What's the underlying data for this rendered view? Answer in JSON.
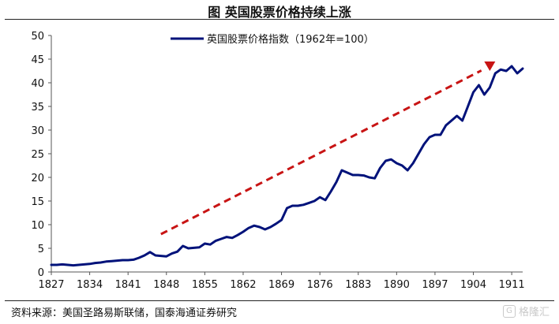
{
  "figure_title": "图  英国股票价格持续上涨",
  "source": "资料来源：美国圣路易斯联储，国泰海通证券研究",
  "watermark": "格隆汇",
  "colors": {
    "series": "#00127a",
    "trend": "#c81414",
    "axis": "#555555"
  },
  "chart_data": {
    "type": "line",
    "title": "",
    "xlabel": "",
    "ylabel": "",
    "ylim": [
      0,
      50
    ],
    "xlim": [
      1827,
      1913
    ],
    "y_ticks": [
      0,
      5,
      10,
      15,
      20,
      25,
      30,
      35,
      40,
      45,
      50
    ],
    "x_ticks": [
      "1827",
      "1834",
      "1841",
      "1848",
      "1855",
      "1862",
      "1869",
      "1876",
      "1883",
      "1890",
      "1897",
      "1904",
      "1911"
    ],
    "legend": {
      "position": "top-center",
      "entries": [
        "英国股票价格指数（1962年=100）"
      ]
    },
    "grid": false,
    "series": [
      {
        "name": "英国股票价格指数（1962年=100）",
        "x": [
          1827,
          1828,
          1829,
          1830,
          1831,
          1832,
          1833,
          1834,
          1835,
          1836,
          1837,
          1838,
          1839,
          1840,
          1841,
          1842,
          1843,
          1844,
          1845,
          1846,
          1847,
          1848,
          1849,
          1850,
          1851,
          1852,
          1853,
          1854,
          1855,
          1856,
          1857,
          1858,
          1859,
          1860,
          1861,
          1862,
          1863,
          1864,
          1865,
          1866,
          1867,
          1868,
          1869,
          1870,
          1871,
          1872,
          1873,
          1874,
          1875,
          1876,
          1877,
          1878,
          1879,
          1880,
          1881,
          1882,
          1883,
          1884,
          1885,
          1886,
          1887,
          1888,
          1889,
          1890,
          1891,
          1892,
          1893,
          1894,
          1895,
          1896,
          1897,
          1898,
          1899,
          1900,
          1901,
          1902,
          1903,
          1904,
          1905,
          1906,
          1907,
          1908,
          1909,
          1910,
          1911,
          1912,
          1913
        ],
        "y": [
          1.5,
          1.5,
          1.6,
          1.5,
          1.4,
          1.5,
          1.6,
          1.7,
          1.9,
          2.0,
          2.2,
          2.3,
          2.4,
          2.5,
          2.5,
          2.6,
          3.0,
          3.5,
          4.2,
          3.5,
          3.4,
          3.3,
          3.9,
          4.3,
          5.5,
          5.0,
          5.1,
          5.2,
          6.0,
          5.8,
          6.6,
          7.0,
          7.4,
          7.2,
          7.8,
          8.5,
          9.3,
          9.8,
          9.5,
          9.0,
          9.5,
          10.2,
          11.0,
          13.5,
          14.0,
          14.0,
          14.2,
          14.6,
          15.0,
          15.8,
          15.2,
          17.0,
          19.0,
          21.5,
          21.0,
          20.5,
          20.5,
          20.4,
          20.0,
          19.8,
          22.0,
          23.5,
          23.8,
          23.0,
          22.5,
          21.5,
          23.0,
          25.0,
          27.0,
          28.5,
          29.0,
          29.0,
          31.0,
          32.0,
          33.0,
          32.0,
          35.0,
          38.0,
          39.5,
          37.5,
          39.0,
          42.0,
          42.8,
          42.5,
          43.5,
          42.0,
          43.0
        ]
      }
    ],
    "annotations": [
      {
        "type": "trend-arrow",
        "from": [
          1847,
          8.0
        ],
        "to": [
          1907,
          43.5
        ]
      }
    ]
  }
}
